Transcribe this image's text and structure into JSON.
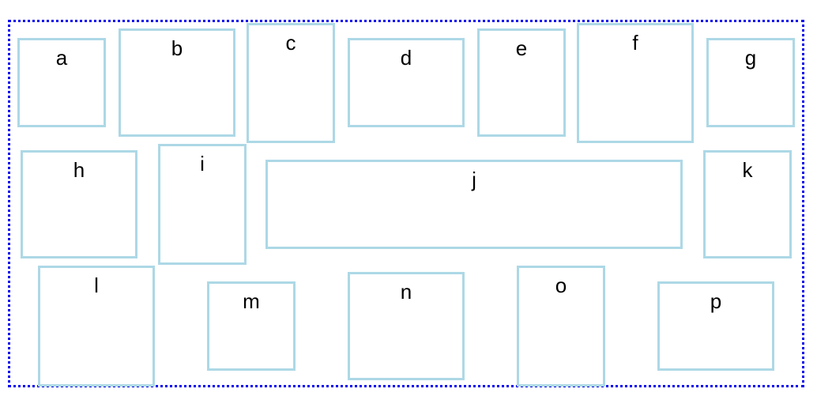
{
  "colors": {
    "container_border": "#0000ee",
    "box_border": "#add8e6",
    "text": "#000000",
    "background": "#ffffff"
  },
  "boxes": {
    "a": "a",
    "b": "b",
    "c": "c",
    "d": "d",
    "e": "e",
    "f": "f",
    "g": "g",
    "h": "h",
    "i": "i",
    "j": "j",
    "k": "k",
    "l": "l",
    "m": "m",
    "n": "n",
    "o": "o",
    "p": "p"
  }
}
